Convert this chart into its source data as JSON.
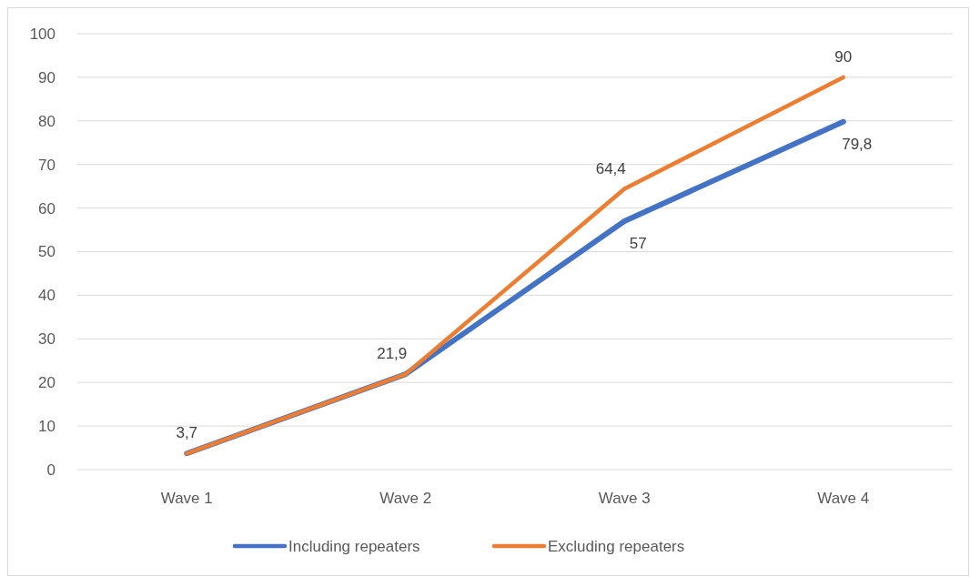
{
  "chart_data": {
    "type": "line",
    "categories": [
      "Wave 1",
      "Wave 2",
      "Wave 3",
      "Wave 4"
    ],
    "series": [
      {
        "name": "Including repeaters",
        "color": "#4472c4",
        "values": [
          3.7,
          21.9,
          57,
          79.8
        ],
        "value_labels": [
          null,
          null,
          "57",
          "79,8"
        ]
      },
      {
        "name": "Excluding repeaters",
        "color": "#ed7d31",
        "values": [
          3.7,
          21.9,
          64.4,
          90
        ],
        "value_labels": [
          "3,7",
          "21,9",
          "64,4",
          "90"
        ]
      }
    ],
    "ylim": [
      0,
      100
    ],
    "yticks": [
      0,
      10,
      20,
      30,
      40,
      50,
      60,
      70,
      80,
      90,
      100
    ],
    "grid": "y",
    "legend": "bottom",
    "marker": "none",
    "line_style": "solid"
  }
}
